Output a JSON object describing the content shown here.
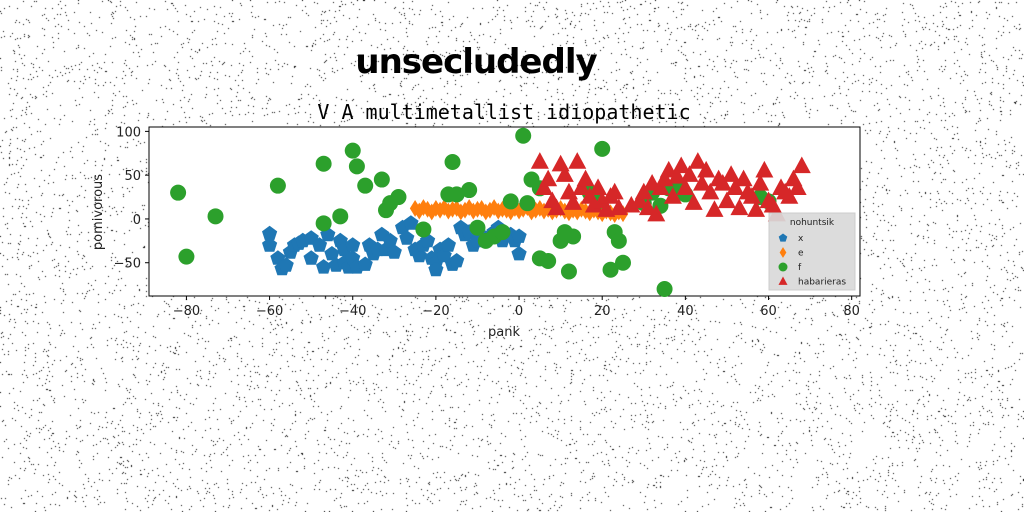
{
  "suptitle": "unsecludedly",
  "chart_data": {
    "type": "scatter",
    "title": "V A multimetallist idiopathetic",
    "xlabel": "pank",
    "ylabel": "pomivorous",
    "xlim": [
      -89,
      82
    ],
    "ylim": [
      -88,
      105
    ],
    "xticks": [
      -80,
      -60,
      -40,
      -20,
      0,
      20,
      40,
      60,
      80
    ],
    "yticks": [
      -50,
      0,
      50,
      100
    ],
    "grid": false,
    "legend": {
      "title": "nohuntsik",
      "placement": "lower-right"
    },
    "series": [
      {
        "name": "x",
        "color": "#1f77b4",
        "marker": "pentagon",
        "points": [
          [
            -60,
            -17
          ],
          [
            -60,
            -30
          ],
          [
            -58,
            -45
          ],
          [
            -57,
            -57
          ],
          [
            -56,
            -53
          ],
          [
            -55,
            -38
          ],
          [
            -54,
            -30
          ],
          [
            -53,
            -28
          ],
          [
            -52,
            -25
          ],
          [
            -50,
            -22
          ],
          [
            -50,
            -45
          ],
          [
            -48,
            -30
          ],
          [
            -47,
            -55
          ],
          [
            -46,
            -18
          ],
          [
            -45,
            -40
          ],
          [
            -44,
            -53
          ],
          [
            -43,
            -25
          ],
          [
            -42,
            -35
          ],
          [
            -42,
            -50
          ],
          [
            -41,
            -55
          ],
          [
            -40,
            -30
          ],
          [
            -40,
            -45
          ],
          [
            -39,
            -55
          ],
          [
            -37,
            -52
          ],
          [
            -36,
            -30
          ],
          [
            -35,
            -40
          ],
          [
            -34,
            -35
          ],
          [
            -33,
            -18
          ],
          [
            -32,
            -35
          ],
          [
            -31,
            -25
          ],
          [
            -30,
            -38
          ],
          [
            -28,
            -10
          ],
          [
            -27,
            -22
          ],
          [
            -26,
            -5
          ],
          [
            -25,
            -35
          ],
          [
            -24,
            -42
          ],
          [
            -23,
            -30
          ],
          [
            -22,
            -25
          ],
          [
            -21,
            -45
          ],
          [
            -20,
            -50
          ],
          [
            -20,
            -58
          ],
          [
            -19,
            -35
          ],
          [
            -18,
            -42
          ],
          [
            -17,
            -30
          ],
          [
            -16,
            -52
          ],
          [
            -15,
            -48
          ],
          [
            -14,
            -10
          ],
          [
            -13,
            -18
          ],
          [
            -12,
            -15
          ],
          [
            -11,
            -30
          ],
          [
            -10,
            -25
          ],
          [
            -8,
            -22
          ],
          [
            -6,
            -15
          ],
          [
            -5,
            -10
          ],
          [
            -4,
            -25
          ],
          [
            -2,
            -18
          ],
          [
            -1,
            -25
          ],
          [
            0,
            -40
          ],
          [
            0,
            -20
          ]
        ]
      },
      {
        "name": "e",
        "color": "#ff7f0e",
        "marker": "diamond",
        "points": [
          [
            -25,
            12
          ],
          [
            -24,
            9
          ],
          [
            -23,
            13
          ],
          [
            -22,
            11
          ],
          [
            -21,
            8
          ],
          [
            -20,
            12
          ],
          [
            -19,
            10
          ],
          [
            -18,
            13
          ],
          [
            -17,
            9
          ],
          [
            -16,
            11
          ],
          [
            -15,
            12
          ],
          [
            -14,
            8
          ],
          [
            -13,
            10
          ],
          [
            -12,
            13
          ],
          [
            -11,
            9
          ],
          [
            -10,
            11
          ],
          [
            -9,
            12
          ],
          [
            -8,
            8
          ],
          [
            -7,
            10
          ],
          [
            -6,
            13
          ],
          [
            -5,
            9
          ],
          [
            -4,
            11
          ],
          [
            -3,
            10
          ],
          [
            -2,
            8
          ],
          [
            -1,
            12
          ],
          [
            0,
            9
          ],
          [
            1,
            11
          ],
          [
            2,
            13
          ],
          [
            3,
            8
          ],
          [
            4,
            10
          ],
          [
            5,
            12
          ],
          [
            6,
            9
          ],
          [
            7,
            11
          ],
          [
            8,
            8
          ],
          [
            9,
            10
          ],
          [
            10,
            12
          ],
          [
            11,
            9
          ],
          [
            12,
            7
          ],
          [
            13,
            10
          ],
          [
            14,
            8
          ],
          [
            15,
            11
          ],
          [
            16,
            9
          ],
          [
            17,
            7
          ],
          [
            18,
            10
          ],
          [
            19,
            8
          ],
          [
            20,
            6
          ],
          [
            21,
            9
          ],
          [
            22,
            7
          ],
          [
            23,
            5
          ],
          [
            24,
            8
          ],
          [
            25,
            6
          ]
        ]
      },
      {
        "name": "f",
        "color": "#2ca02c",
        "marker": "circle",
        "points": [
          [
            -82,
            30
          ],
          [
            -80,
            -43
          ],
          [
            -73,
            3
          ],
          [
            -58,
            38
          ],
          [
            -47,
            63
          ],
          [
            -47,
            -5
          ],
          [
            -43,
            3
          ],
          [
            -40,
            78
          ],
          [
            -39,
            60
          ],
          [
            -37,
            38
          ],
          [
            -33,
            45
          ],
          [
            -32,
            10
          ],
          [
            -31,
            18
          ],
          [
            -29,
            25
          ],
          [
            -23,
            -12
          ],
          [
            -17,
            28
          ],
          [
            -16,
            65
          ],
          [
            -15,
            28
          ],
          [
            -12,
            33
          ],
          [
            -10,
            -10
          ],
          [
            -8,
            -25
          ],
          [
            -6,
            -20
          ],
          [
            -4,
            -15
          ],
          [
            -2,
            20
          ],
          [
            1,
            95
          ],
          [
            2,
            18
          ],
          [
            3,
            45
          ],
          [
            5,
            35
          ],
          [
            5,
            -45
          ],
          [
            7,
            -48
          ],
          [
            10,
            -25
          ],
          [
            11,
            -15
          ],
          [
            12,
            -60
          ],
          [
            13,
            -20
          ],
          [
            17,
            30
          ],
          [
            19,
            20
          ],
          [
            20,
            80
          ],
          [
            22,
            -58
          ],
          [
            23,
            -15
          ],
          [
            24,
            -25
          ],
          [
            25,
            -50
          ],
          [
            30,
            18
          ],
          [
            32,
            30
          ],
          [
            34,
            15
          ],
          [
            35,
            -80
          ],
          [
            36,
            35
          ],
          [
            38,
            35
          ],
          [
            40,
            28
          ],
          [
            58,
            25
          ],
          [
            60,
            20
          ]
        ]
      },
      {
        "name": "habarieras",
        "color": "#d62728",
        "marker": "triangle",
        "points": [
          [
            5,
            65
          ],
          [
            6,
            35
          ],
          [
            7,
            45
          ],
          [
            8,
            20
          ],
          [
            9,
            12
          ],
          [
            10,
            62
          ],
          [
            11,
            50
          ],
          [
            12,
            30
          ],
          [
            13,
            18
          ],
          [
            14,
            65
          ],
          [
            15,
            35
          ],
          [
            16,
            45
          ],
          [
            17,
            25
          ],
          [
            18,
            15
          ],
          [
            19,
            35
          ],
          [
            20,
            20
          ],
          [
            21,
            10
          ],
          [
            22,
            25
          ],
          [
            23,
            30
          ],
          [
            24,
            12
          ],
          [
            27,
            15
          ],
          [
            29,
            20
          ],
          [
            30,
            30
          ],
          [
            31,
            12
          ],
          [
            32,
            40
          ],
          [
            33,
            5
          ],
          [
            34,
            35
          ],
          [
            35,
            45
          ],
          [
            36,
            55
          ],
          [
            37,
            25
          ],
          [
            38,
            48
          ],
          [
            39,
            60
          ],
          [
            40,
            35
          ],
          [
            41,
            50
          ],
          [
            42,
            18
          ],
          [
            43,
            65
          ],
          [
            44,
            40
          ],
          [
            45,
            55
          ],
          [
            46,
            30
          ],
          [
            47,
            10
          ],
          [
            48,
            45
          ],
          [
            49,
            40
          ],
          [
            50,
            20
          ],
          [
            51,
            50
          ],
          [
            52,
            35
          ],
          [
            53,
            12
          ],
          [
            54,
            45
          ],
          [
            55,
            30
          ],
          [
            56,
            25
          ],
          [
            57,
            10
          ],
          [
            58,
            40
          ],
          [
            59,
            55
          ],
          [
            60,
            20
          ],
          [
            61,
            15
          ],
          [
            62,
            5
          ],
          [
            63,
            35
          ],
          [
            64,
            30
          ],
          [
            65,
            25
          ],
          [
            66,
            45
          ],
          [
            67,
            35
          ],
          [
            68,
            60
          ]
        ]
      }
    ]
  }
}
